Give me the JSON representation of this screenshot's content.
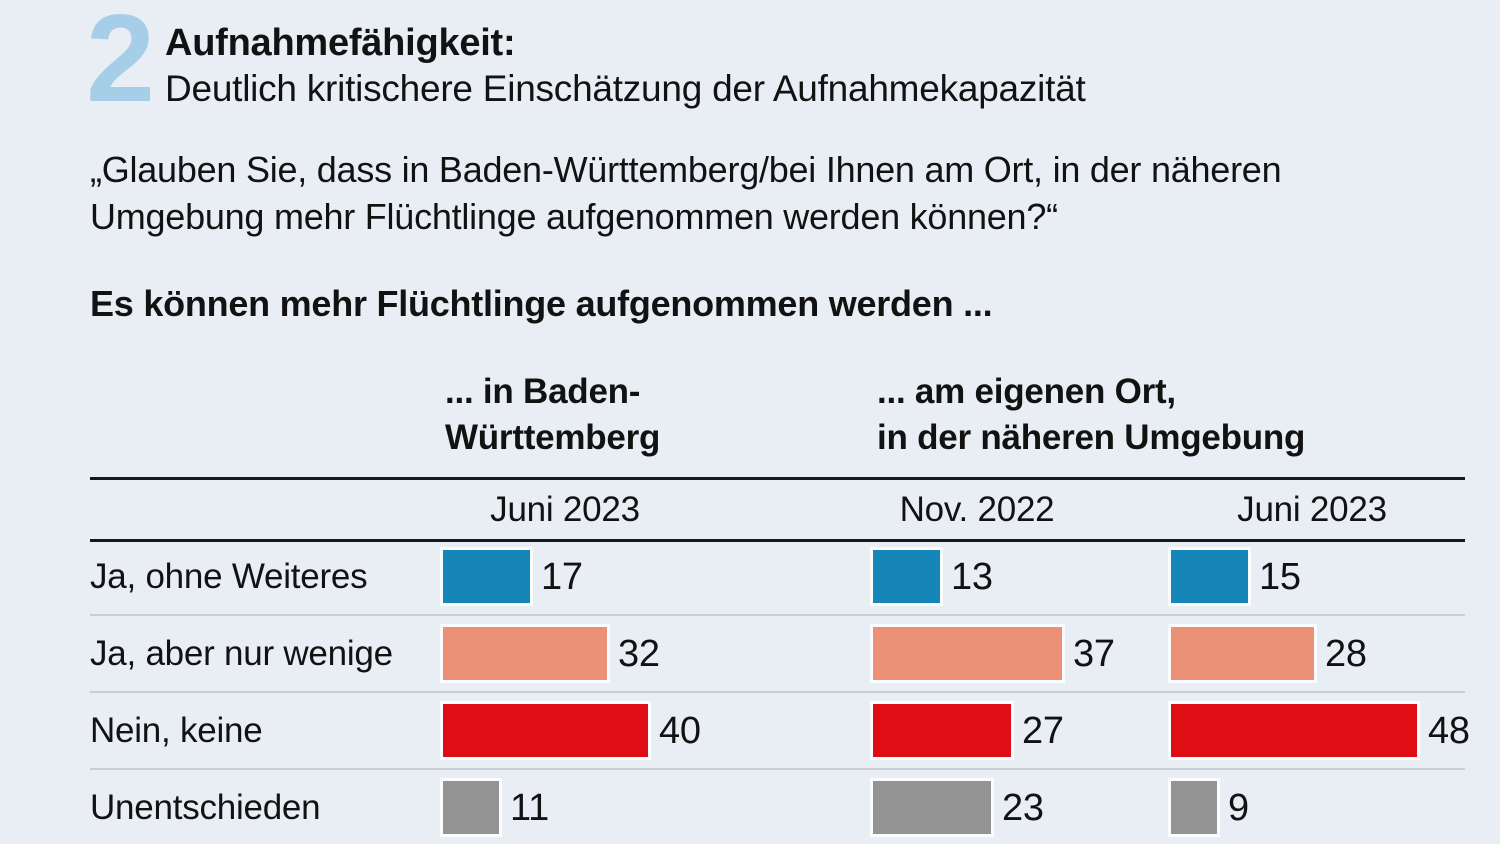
{
  "header": {
    "number": "2",
    "title": "Aufnahmefähigkeit:",
    "subtitle": "Deutlich kritischere Einschätzung der Aufnahmekapazität"
  },
  "question": "„Glauben Sie, dass in Baden-Württemberg/bei Ihnen am Ort, in der näheren Umgebung mehr Flüchtlinge aufgenommen werden können?“",
  "lead": "Es können mehr Flüchtlinge aufgenommen werden ...",
  "table": {
    "group_headers": [
      {
        "line1": "... in Baden-",
        "line2": "Württemberg"
      },
      {
        "line1": "... am eigenen Ort,",
        "line2": "in der näheren Umgebung"
      }
    ],
    "date_headers": [
      "Juni 2023",
      "Nov. 2022",
      "Juni 2023"
    ],
    "rows": [
      {
        "label": "Ja, ohne Weiteres",
        "color_key": "blue",
        "values": [
          17,
          13,
          15
        ]
      },
      {
        "label": "Ja, aber nur wenige",
        "color_key": "salmon",
        "values": [
          32,
          37,
          28
        ]
      },
      {
        "label": "Nein, keine",
        "color_key": "red",
        "values": [
          40,
          27,
          48
        ]
      },
      {
        "label": "Unentschieden",
        "color_key": "gray",
        "values": [
          11,
          23,
          9
        ]
      }
    ]
  },
  "colors": {
    "background": "#e9eef4",
    "accent_number": "#a6cee9",
    "blue": "#1586b7",
    "salmon": "#ec9077",
    "red": "#df0e14",
    "gray": "#939393",
    "dark_rule": "#16181a",
    "light_rule": "#c9ced5"
  },
  "chart_data": {
    "type": "bar",
    "title": "Es können mehr Flüchtlinge aufgenommen werden ...",
    "subtitle": "Aufnahmefähigkeit: Deutlich kritischere Einschätzung der Aufnahmekapazität",
    "question": "„Glauben Sie, dass in Baden-Württemberg/bei Ihnen am Ort, in der näheren Umgebung mehr Flüchtlinge aufgenommen werden können?“",
    "categories": [
      "Ja, ohne Weiteres",
      "Ja, aber nur wenige",
      "Nein, keine",
      "Unentschieden"
    ],
    "series": [
      {
        "name": "... in Baden-Württemberg — Juni 2023",
        "values": [
          17,
          32,
          40,
          11
        ]
      },
      {
        "name": "... am eigenen Ort, in der näheren Umgebung — Nov. 2022",
        "values": [
          13,
          37,
          27,
          23
        ]
      },
      {
        "name": "... am eigenen Ort, in der näheren Umgebung — Juni 2023",
        "values": [
          15,
          28,
          48,
          9
        ]
      }
    ],
    "unit": "percent",
    "xlim": [
      0,
      50
    ],
    "orientation": "horizontal",
    "value_labels": "outside-end",
    "series_colors_by_category": [
      "#1586b7",
      "#ec9077",
      "#df0e14",
      "#939393"
    ]
  }
}
